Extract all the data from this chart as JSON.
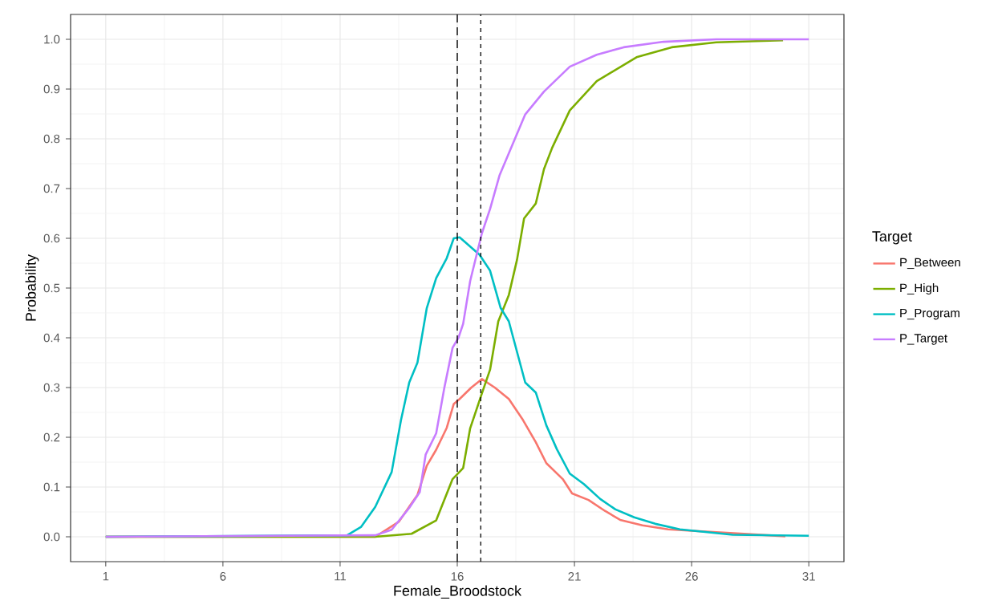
{
  "chart_data": {
    "type": "line",
    "xlabel": "Female_Broodstock",
    "ylabel": "Probability",
    "legend_title": "Target",
    "legend": "right",
    "grid": true,
    "line_style": "solid",
    "marker": "none",
    "xlim": [
      -0.5,
      32.5
    ],
    "ylim": [
      -0.05,
      1.05
    ],
    "xticks": [
      1,
      6,
      11,
      16,
      21,
      26,
      31
    ],
    "yticks": [
      {
        "value": 0,
        "label": "0.0"
      },
      0.1,
      0.2,
      0.3,
      0.4,
      0.5,
      0.6,
      0.7,
      0.8,
      0.9,
      {
        "value": 1,
        "label": "1.0"
      }
    ],
    "series": [
      {
        "name": "P_Between",
        "color": "#f8766d",
        "x": [
          1,
          12.5,
          13.5,
          14.3,
          14.7,
          15.1,
          15.55,
          15.85,
          16.1,
          16.6,
          17.05,
          17.6,
          18.2,
          18.8,
          19.35,
          19.8,
          20.5,
          20.9,
          21.6,
          22.3,
          22.95,
          23.9,
          25,
          30
        ],
        "values": [
          0,
          0,
          0.03,
          0.084,
          0.143,
          0.175,
          0.219,
          0.267,
          0.277,
          0.3,
          0.317,
          0.3,
          0.277,
          0.235,
          0.19,
          0.148,
          0.116,
          0.087,
          0.074,
          0.052,
          0.034,
          0.023,
          0.015,
          0.001
        ]
      },
      {
        "name": "P_High",
        "color": "#7cae00",
        "x": [
          1,
          12.5,
          14.05,
          15.1,
          15.8,
          16.25,
          16.55,
          17.05,
          17.4,
          17.75,
          18.2,
          18.55,
          18.85,
          19.35,
          19.7,
          20.05,
          20.8,
          21.95,
          23.65,
          25.15,
          27.05,
          29.9
        ],
        "values": [
          0,
          0,
          0.006,
          0.033,
          0.116,
          0.138,
          0.218,
          0.288,
          0.336,
          0.433,
          0.486,
          0.557,
          0.64,
          0.67,
          0.739,
          0.782,
          0.857,
          0.916,
          0.964,
          0.984,
          0.994,
          0.998
        ]
      },
      {
        "name": "P_Program",
        "color": "#00bfc4",
        "x": [
          1,
          11.3,
          11.9,
          12.5,
          13.2,
          13.6,
          13.95,
          14.3,
          14.7,
          15.1,
          15.55,
          15.85,
          16.1,
          16.95,
          17.4,
          17.85,
          18.2,
          18.9,
          19.35,
          19.8,
          20.25,
          20.8,
          21.4,
          22.1,
          22.75,
          23.55,
          24.45,
          25.5,
          26.5,
          27.75,
          31
        ],
        "values": [
          0,
          0.003,
          0.02,
          0.06,
          0.13,
          0.235,
          0.31,
          0.35,
          0.46,
          0.52,
          0.56,
          0.6,
          0.602,
          0.567,
          0.535,
          0.46,
          0.433,
          0.31,
          0.29,
          0.224,
          0.176,
          0.127,
          0.106,
          0.076,
          0.055,
          0.039,
          0.026,
          0.015,
          0.01,
          0.004,
          0.002
        ]
      },
      {
        "name": "P_Target",
        "color": "#c77cff",
        "x": [
          1,
          12.5,
          13.2,
          13.95,
          14.4,
          14.65,
          15.1,
          15.45,
          15.8,
          16.05,
          16.25,
          16.55,
          17.05,
          17.4,
          17.8,
          18.9,
          19.7,
          20.8,
          21.95,
          23.1,
          24.8,
          27.05,
          31
        ],
        "values": [
          0,
          0.003,
          0.014,
          0.058,
          0.09,
          0.165,
          0.208,
          0.3,
          0.38,
          0.4,
          0.428,
          0.514,
          0.61,
          0.659,
          0.726,
          0.849,
          0.895,
          0.945,
          0.969,
          0.984,
          0.995,
          1,
          1
        ]
      }
    ],
    "ref_lines": [
      {
        "axis": "x",
        "value": 16,
        "line_style": "dashed",
        "color": "#000000"
      },
      {
        "axis": "x",
        "value": 17,
        "line_style": "dotted",
        "color": "#000000"
      }
    ]
  }
}
